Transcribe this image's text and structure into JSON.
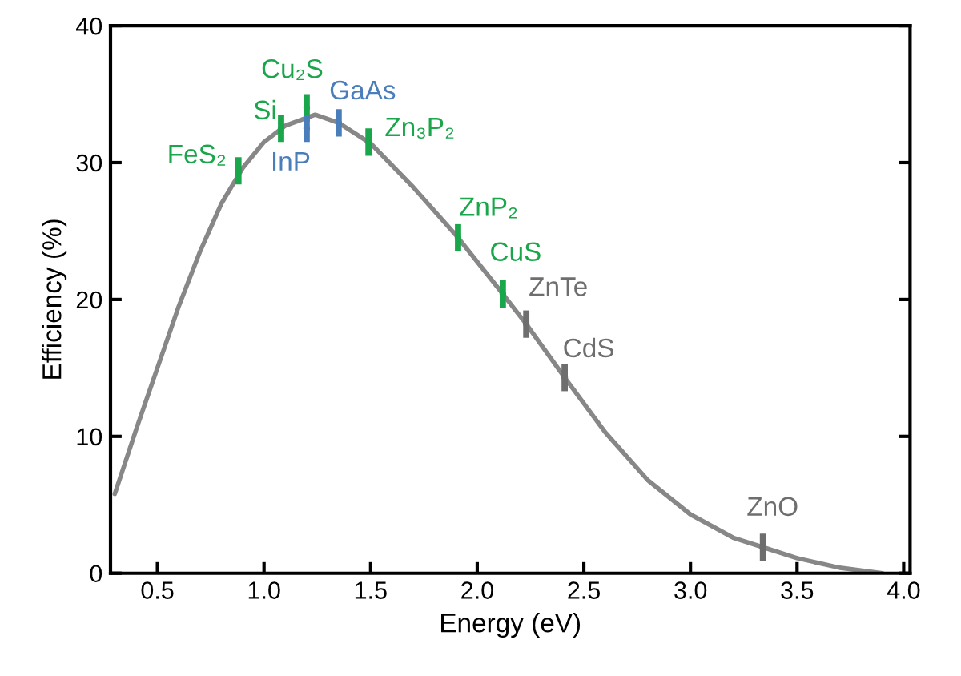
{
  "chart_data": {
    "type": "line",
    "xlabel": "Energy (eV)",
    "ylabel": "Efficiency (%)",
    "xlim": [
      0.28,
      4.03
    ],
    "ylim": [
      0,
      40
    ],
    "xticks": [
      {
        "value": 0.5,
        "label": "0.5"
      },
      {
        "value": 1.0,
        "label": "1.0"
      },
      {
        "value": 1.5,
        "label": "1.5"
      },
      {
        "value": 2.0,
        "label": "2.0"
      },
      {
        "value": 2.5,
        "label": "2.5"
      },
      {
        "value": 3.0,
        "label": "3.0"
      },
      {
        "value": 3.5,
        "label": "3.5"
      },
      {
        "value": 4.0,
        "label": "4.0"
      }
    ],
    "yticks": [
      0,
      10,
      20,
      30,
      40
    ],
    "grid": false,
    "legend": false,
    "series": [
      {
        "type": "line",
        "color": "#878787",
        "x": [
          0.3,
          0.4,
          0.5,
          0.6,
          0.7,
          0.8,
          0.9,
          1.0,
          1.1,
          1.24,
          1.35,
          1.5,
          1.7,
          1.9,
          2.1,
          2.23,
          2.41,
          2.6,
          2.8,
          3.0,
          3.2,
          3.34,
          3.5,
          3.7,
          3.9
        ],
        "values": [
          5.8,
          10.5,
          15,
          19.5,
          23.5,
          27,
          29.6,
          31.5,
          32.7,
          33.5,
          32.9,
          31.4,
          28.2,
          24.7,
          20.8,
          18.2,
          14.3,
          10.3,
          6.8,
          4.3,
          2.6,
          1.9,
          1.1,
          0.4,
          0
        ]
      },
      {
        "type": "scatter",
        "marker": "circle",
        "errors": [
          1,
          1,
          1,
          1,
          1,
          1,
          1,
          1,
          1,
          1,
          1
        ],
        "x": [
          0.88,
          1.08,
          1.2,
          1.2,
          1.35,
          1.49,
          1.91,
          2.12,
          2.23,
          2.41,
          3.34
        ],
        "values": [
          29.4,
          32.5,
          34.0,
          32.5,
          32.9,
          31.5,
          24.5,
          20.4,
          18.2,
          14.3,
          1.9
        ],
        "colors": [
          "#1aa64a",
          "#1aa64a",
          "#1aa64a",
          "#4a7ebb",
          "#4a7ebb",
          "#1aa64a",
          "#1aa64a",
          "#1aa64a",
          "#6e6e6e",
          "#6e6e6e",
          "#6e6e6e"
        ],
        "value_labels": [
          "FeS₂",
          "Si",
          "Cu₂S",
          "InP",
          "GaAs",
          "Zn₃P₂",
          "ZnP₂",
          "CuS",
          "ZnTe",
          "CdS",
          "ZnO"
        ]
      }
    ]
  }
}
